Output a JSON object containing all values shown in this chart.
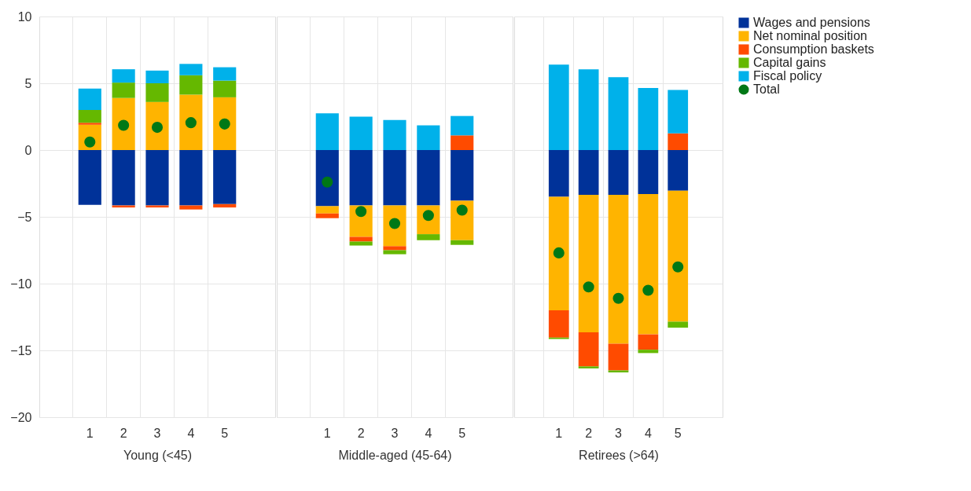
{
  "chart_data": [
    {
      "type": "bar",
      "stacked": true,
      "xlabel": "Young (<45)",
      "categories": [
        "1",
        "2",
        "3",
        "4",
        "5"
      ],
      "ylim": [
        -20,
        10
      ],
      "yticks": [
        -20,
        -15,
        -10,
        -5,
        0,
        5,
        10
      ],
      "grid": true,
      "legend": "right",
      "series": [
        {
          "name": "Wages and pensions",
          "color": "#003299",
          "values": [
            -4.1,
            -4.15,
            -4.15,
            -4.15,
            -4.05
          ]
        },
        {
          "name": "Net nominal position",
          "color": "#ffb400",
          "values": [
            1.9,
            3.9,
            3.6,
            4.15,
            3.95
          ]
        },
        {
          "name": "Consumption baskets",
          "color": "#ff4b00",
          "values": [
            0.15,
            -0.15,
            -0.15,
            -0.3,
            -0.25
          ]
        },
        {
          "name": "Capital gains",
          "color": "#65b800",
          "values": [
            0.95,
            1.15,
            1.4,
            1.45,
            1.25
          ]
        },
        {
          "name": "Fiscal policy",
          "color": "#00b1ea",
          "values": [
            1.6,
            1.0,
            0.95,
            0.85,
            1.0
          ]
        },
        {
          "name": "Total",
          "type": "scatter",
          "marker": "circle",
          "color": "#007816",
          "values": [
            0.6,
            1.85,
            1.7,
            2.05,
            1.95
          ]
        }
      ]
    },
    {
      "type": "bar",
      "stacked": true,
      "xlabel": "Middle-aged (45-64)",
      "categories": [
        "1",
        "2",
        "3",
        "4",
        "5"
      ],
      "ylim": [
        -20,
        10
      ],
      "yticks": [
        -20,
        -15,
        -10,
        -5,
        0,
        5,
        10
      ],
      "grid": true,
      "tick_labels": "x",
      "series": [
        {
          "color": "#003299",
          "values": [
            -4.2,
            -4.15,
            -4.15,
            -4.15,
            -3.8
          ]
        },
        {
          "color": "#ffb400",
          "values": [
            -0.55,
            -2.35,
            -3.05,
            -2.15,
            -2.95
          ]
        },
        {
          "color": "#ff4b00",
          "values": [
            -0.35,
            -0.35,
            -0.3,
            null,
            1.1
          ]
        },
        {
          "color": "#65b800",
          "values": [
            null,
            -0.3,
            -0.3,
            -0.45,
            -0.35
          ]
        },
        {
          "color": "#00b1ea",
          "values": [
            2.75,
            2.5,
            2.25,
            1.85,
            1.45
          ]
        },
        {
          "type": "scatter",
          "marker": "circle",
          "color": "#007816",
          "values": [
            -2.4,
            -4.6,
            -5.5,
            -4.9,
            -4.5
          ]
        }
      ]
    },
    {
      "type": "bar",
      "stacked": true,
      "xlabel": "Retirees (>64)",
      "categories": [
        "1",
        "2",
        "3",
        "4",
        "5"
      ],
      "ylim": [
        -20,
        10
      ],
      "yticks": [
        -20,
        -15,
        -10,
        -5,
        0,
        5,
        10
      ],
      "grid": true,
      "tick_labels": "x",
      "series": [
        {
          "color": "#003299",
          "values": [
            -3.5,
            -3.35,
            -3.35,
            -3.3,
            -3.05
          ]
        },
        {
          "color": "#ffb400",
          "values": [
            -8.5,
            -10.3,
            -11.15,
            -10.5,
            -9.8
          ]
        },
        {
          "color": "#ff4b00",
          "values": [
            -2.05,
            -2.55,
            -2.0,
            -1.15,
            1.25
          ]
        },
        {
          "color": "#65b800",
          "values": [
            -0.1,
            -0.15,
            -0.15,
            -0.25,
            -0.45
          ]
        },
        {
          "color": "#00b1ea",
          "values": [
            6.4,
            6.05,
            5.45,
            4.65,
            3.25
          ]
        },
        {
          "type": "scatter",
          "marker": "circle",
          "color": "#007816",
          "values": [
            -7.7,
            -10.25,
            -11.1,
            -10.5,
            -8.75
          ]
        }
      ]
    }
  ]
}
